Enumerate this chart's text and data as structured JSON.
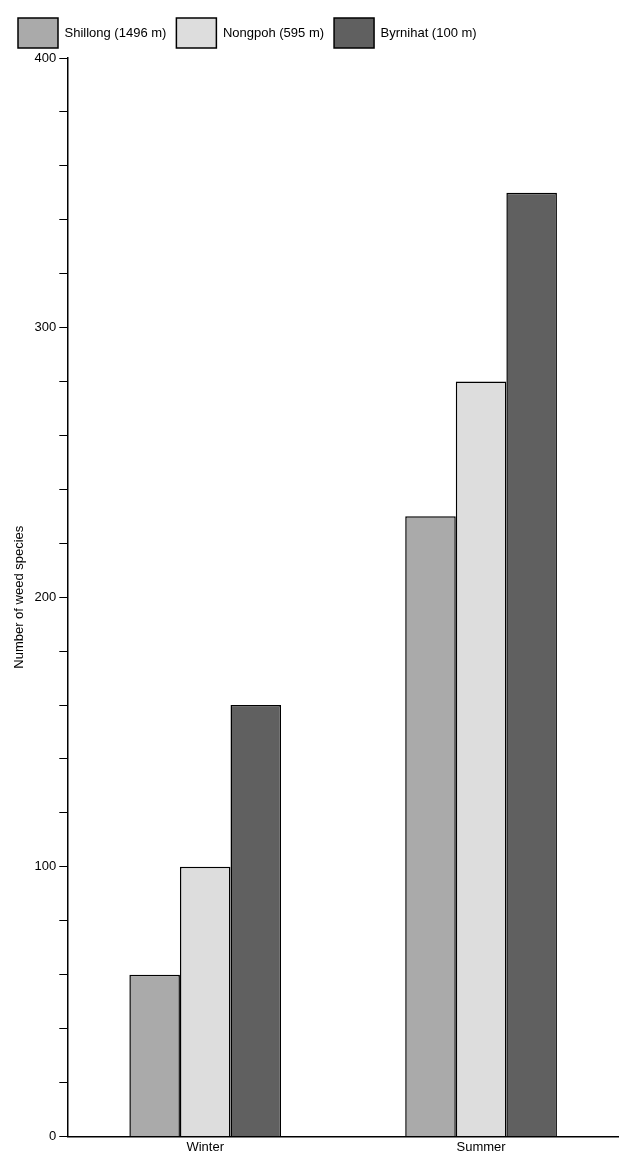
{
  "chart_data": {
    "type": "bar",
    "ylabel": "Number of weed species",
    "categories": [
      "Winter",
      "Summer"
    ],
    "series": [
      {
        "name": "Shillong (1496 m)",
        "color": "#aaaaaa",
        "values": [
          60,
          230
        ]
      },
      {
        "name": "Nongpoh (595 m)",
        "color": "#dddddd",
        "values": [
          100,
          280
        ]
      },
      {
        "name": "Byrnihat (100 m)",
        "color": "#606060",
        "values": [
          160,
          350
        ]
      }
    ],
    "ylim": [
      0,
      400
    ],
    "yticks": [
      0,
      {
        "value": 20,
        "label": null
      },
      {
        "value": 40,
        "label": null
      },
      {
        "value": 60,
        "label": null
      },
      {
        "value": 80,
        "label": null
      },
      100,
      {
        "value": 120,
        "label": null
      },
      {
        "value": 140,
        "label": null
      },
      {
        "value": 160,
        "label": null
      },
      {
        "value": 180,
        "label": null
      },
      200,
      {
        "value": 220,
        "label": null
      },
      {
        "value": 240,
        "label": null
      },
      {
        "value": 260,
        "label": null
      },
      {
        "value": 280,
        "label": null
      },
      300,
      {
        "value": 320,
        "label": null
      },
      {
        "value": 340,
        "label": null
      },
      {
        "value": 360,
        "label": null
      },
      {
        "value": 380,
        "label": null
      },
      400
    ],
    "grid": false,
    "legend": "top left"
  }
}
